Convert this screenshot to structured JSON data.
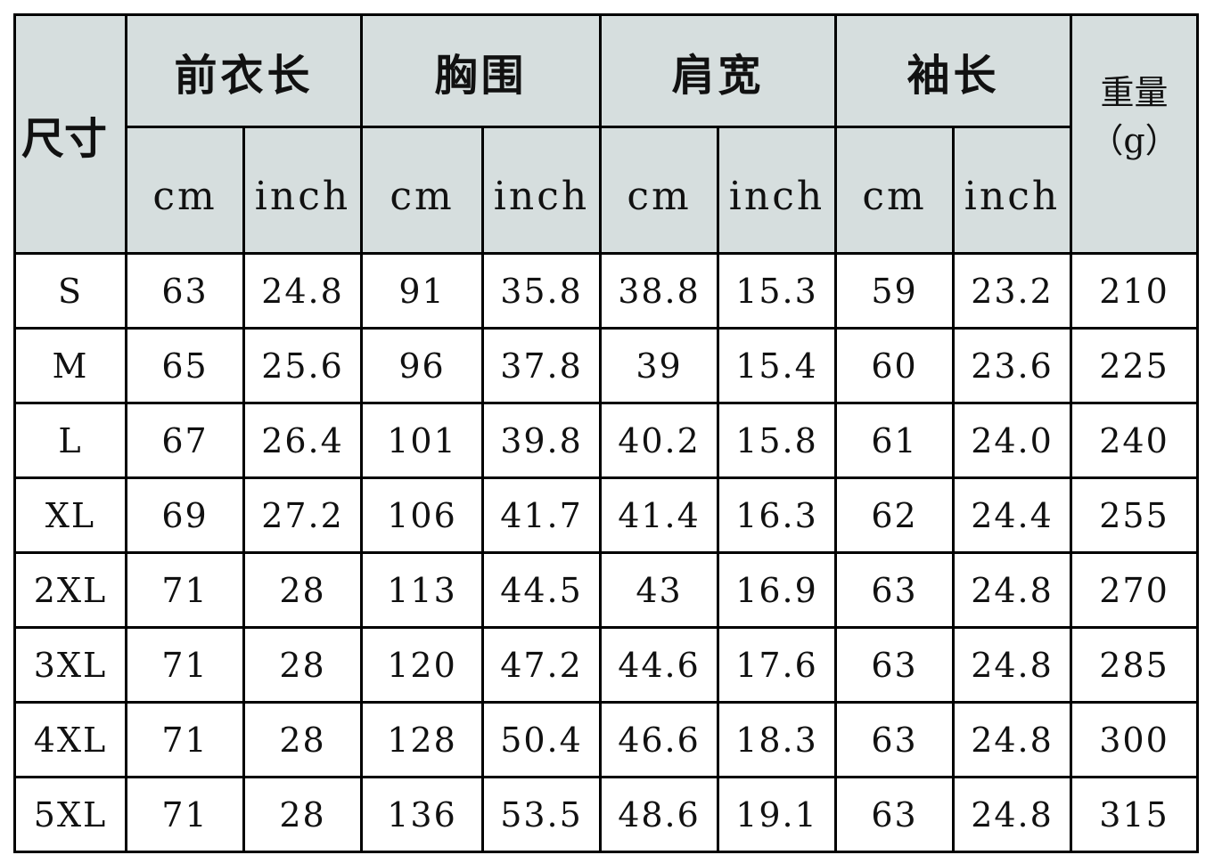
{
  "header": {
    "size": "尺寸",
    "groups": [
      "前衣长",
      "胸围",
      "肩宽",
      "袖长"
    ],
    "unit_cm": "cm",
    "unit_inch": "inch",
    "weight": "重量",
    "weight_unit": "（g）"
  },
  "rows": [
    [
      "S",
      "63",
      "24.8",
      "91",
      "35.8",
      "38.8",
      "15.3",
      "59",
      "23.2",
      "210"
    ],
    [
      "M",
      "65",
      "25.6",
      "96",
      "37.8",
      "39",
      "15.4",
      "60",
      "23.6",
      "225"
    ],
    [
      "L",
      "67",
      "26.4",
      "101",
      "39.8",
      "40.2",
      "15.8",
      "61",
      "24.0",
      "240"
    ],
    [
      "XL",
      "69",
      "27.2",
      "106",
      "41.7",
      "41.4",
      "16.3",
      "62",
      "24.4",
      "255"
    ],
    [
      "2XL",
      "71",
      "28",
      "113",
      "44.5",
      "43",
      "16.9",
      "63",
      "24.8",
      "270"
    ],
    [
      "3XL",
      "71",
      "28",
      "120",
      "47.2",
      "44.6",
      "17.6",
      "63",
      "24.8",
      "285"
    ],
    [
      "4XL",
      "71",
      "28",
      "128",
      "50.4",
      "46.6",
      "18.3",
      "63",
      "24.8",
      "300"
    ],
    [
      "5XL",
      "71",
      "28",
      "136",
      "53.5",
      "48.6",
      "19.1",
      "63",
      "24.8",
      "315"
    ]
  ],
  "colors": {
    "header_bg": "#d6dede",
    "border": "#000000"
  }
}
